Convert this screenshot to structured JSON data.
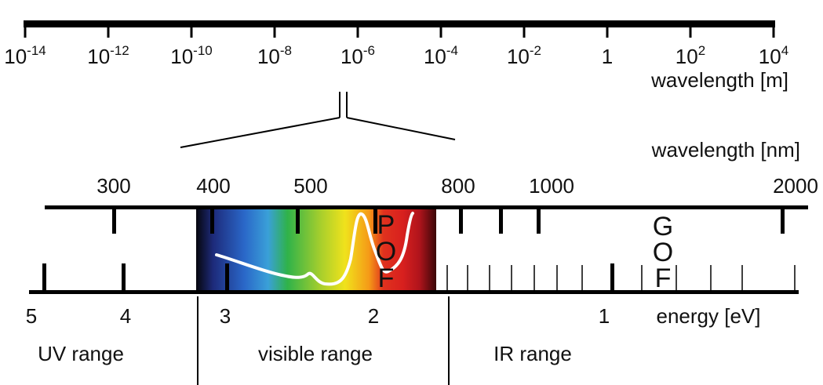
{
  "top_scale": {
    "ticks": [
      {
        "base": "10",
        "exp": "-14"
      },
      {
        "base": "10",
        "exp": "-12"
      },
      {
        "base": "10",
        "exp": "-10"
      },
      {
        "base": "10",
        "exp": "-8"
      },
      {
        "base": "10",
        "exp": "-6"
      },
      {
        "base": "10",
        "exp": "-4"
      },
      {
        "base": "10",
        "exp": "-2"
      },
      {
        "base": "1",
        "exp": ""
      },
      {
        "base": "10",
        "exp": "2"
      },
      {
        "base": "10",
        "exp": "4"
      }
    ],
    "unit_label": "wavelength [m]"
  },
  "zoom": {
    "nm_unit_label": "wavelength [nm]",
    "nm_ticks": [
      "300",
      "400",
      "500",
      "800",
      "1000",
      "2000"
    ],
    "pof_label": [
      "P",
      "O",
      "F"
    ],
    "gof_label": [
      "G",
      "O",
      "F"
    ],
    "ev_ticks": [
      "5",
      "4",
      "3",
      "2",
      "1"
    ],
    "ev_unit_label": "energy [eV]",
    "spectrum_stops": [
      "#06060c",
      "#1d2a7a",
      "#2a67c8",
      "#3aa0d8",
      "#2fb24a",
      "#a8cf2c",
      "#f0e21c",
      "#f59a17",
      "#e0321e",
      "#d8201e",
      "#b0141c",
      "#3a0608"
    ]
  },
  "ranges": {
    "uv": "UV range",
    "visible": "visible range",
    "ir": "IR range"
  }
}
